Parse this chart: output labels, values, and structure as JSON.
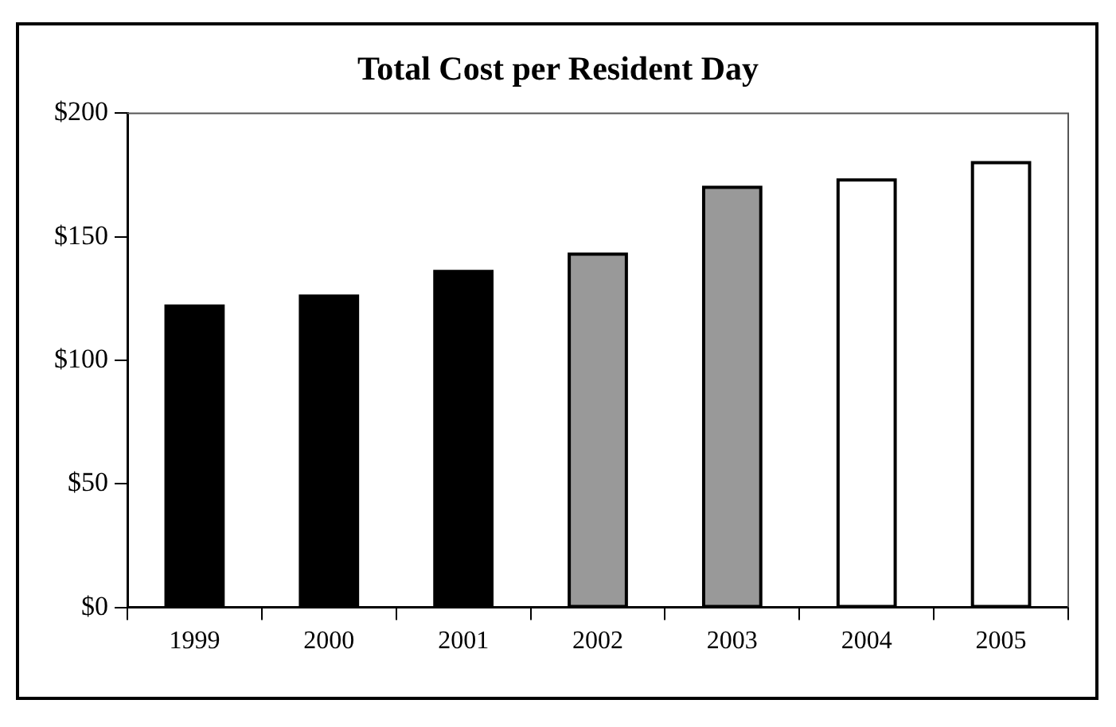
{
  "chart_data": {
    "type": "bar",
    "title": "Total Cost per Resident Day",
    "categories": [
      "1999",
      "2000",
      "2001",
      "2002",
      "2003",
      "2004",
      "2005"
    ],
    "values": [
      122,
      126,
      136,
      143,
      170,
      173,
      180
    ],
    "colors": [
      "#000000",
      "#000000",
      "#000000",
      "#999999",
      "#999999",
      "#ffffff",
      "#ffffff"
    ],
    "ylim": [
      0,
      200
    ],
    "yticks": [
      {
        "value": 0,
        "label": "$0"
      },
      {
        "value": 50,
        "label": "$50"
      },
      {
        "value": 100,
        "label": "$100"
      },
      {
        "value": 150,
        "label": "$150"
      },
      {
        "value": 200,
        "label": "$200"
      }
    ],
    "grid": false,
    "legend": false
  }
}
